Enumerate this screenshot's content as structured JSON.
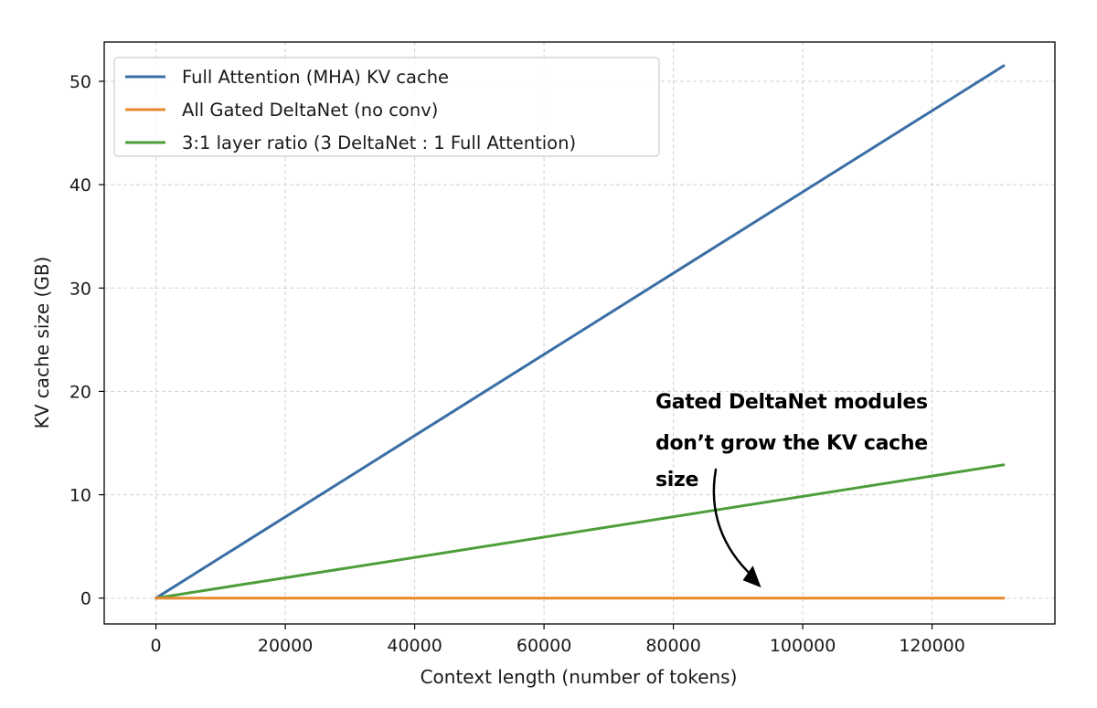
{
  "chart_data": {
    "type": "line",
    "xlabel": "Context length (number of tokens)",
    "ylabel": "KV cache size (GB)",
    "xlim": [
      -8000,
      139000
    ],
    "ylim": [
      -2.5,
      53.8
    ],
    "xticks": [
      0,
      20000,
      40000,
      60000,
      80000,
      100000,
      120000
    ],
    "yticks": [
      0,
      10,
      20,
      30,
      40,
      50
    ],
    "grid": true,
    "legend_position": "top-left",
    "series": [
      {
        "name": "Full Attention (MHA) KV cache",
        "color": "#3a6ea5",
        "x": [
          0,
          131072
        ],
        "values": [
          0,
          51.5
        ]
      },
      {
        "name": "All Gated DeltaNet (no conv)",
        "color": "#e8892f",
        "x": [
          0,
          131072
        ],
        "values": [
          0,
          0
        ]
      },
      {
        "name": "3:1 layer ratio (3 DeltaNet : 1 Full Attention)",
        "color": "#4d9e3a",
        "x": [
          0,
          131072
        ],
        "values": [
          0,
          12.9
        ]
      }
    ],
    "annotation": {
      "lines": [
        "Gated DeltaNet modules",
        "don’t grow the KV cache",
        "size"
      ],
      "arrow_target": {
        "x": 93000,
        "y": 1.2
      }
    }
  }
}
